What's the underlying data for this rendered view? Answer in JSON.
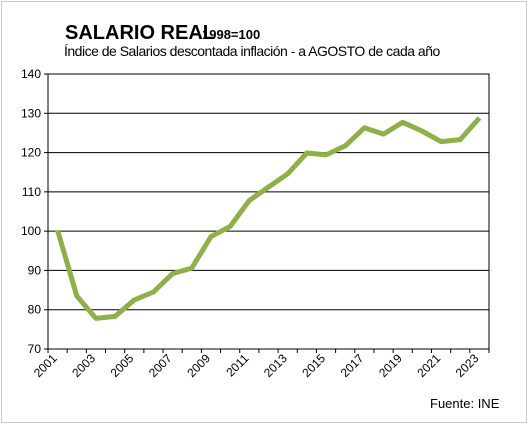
{
  "chart_data": {
    "type": "line",
    "title": "SALARIO REAL",
    "title_suffix": "1998=100",
    "subtitle": "Índice de Salarios descontada inflación - a AGOSTO de cada año",
    "source": "Fuente: INE",
    "xlabel": "",
    "ylabel": "",
    "ylim": [
      70,
      140
    ],
    "y_ticks": [
      70,
      80,
      90,
      100,
      110,
      120,
      130,
      140
    ],
    "x_tick_labels": [
      "2001",
      "2003",
      "2005",
      "2007",
      "2009",
      "2011",
      "2013",
      "2015",
      "2017",
      "2019",
      "2021",
      "2023"
    ],
    "grid": true,
    "legend": "none",
    "line_color": "#8faf4a",
    "categories": [
      "2001",
      "2002",
      "2003",
      "2004",
      "2005",
      "2006",
      "2007",
      "2008",
      "2009",
      "2010",
      "2011",
      "2012",
      "2013",
      "2014",
      "2015",
      "2016",
      "2017",
      "2018",
      "2019",
      "2020",
      "2021",
      "2022",
      "2023"
    ],
    "series": [
      {
        "values": [
          100.2,
          83.5,
          77.8,
          78.3,
          82.5,
          84.5,
          89.2,
          90.6,
          98.6,
          101.2,
          107.8,
          111.2,
          114.6,
          119.9,
          119.4,
          121.7,
          126.3,
          124.7,
          127.7,
          125.5,
          122.8,
          123.3,
          128.8
        ]
      }
    ]
  }
}
